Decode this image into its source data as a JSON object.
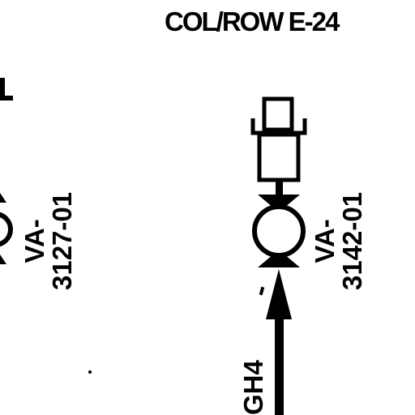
{
  "sheet": {
    "title": "COL/ROW E-24"
  },
  "valves": [
    {
      "tag_prefix": "VA-",
      "tag_number": "3127-01"
    },
    {
      "tag_prefix": "VA-",
      "tag_number": "3142-01"
    }
  ],
  "lines": [
    {
      "label": "GH4"
    }
  ]
}
